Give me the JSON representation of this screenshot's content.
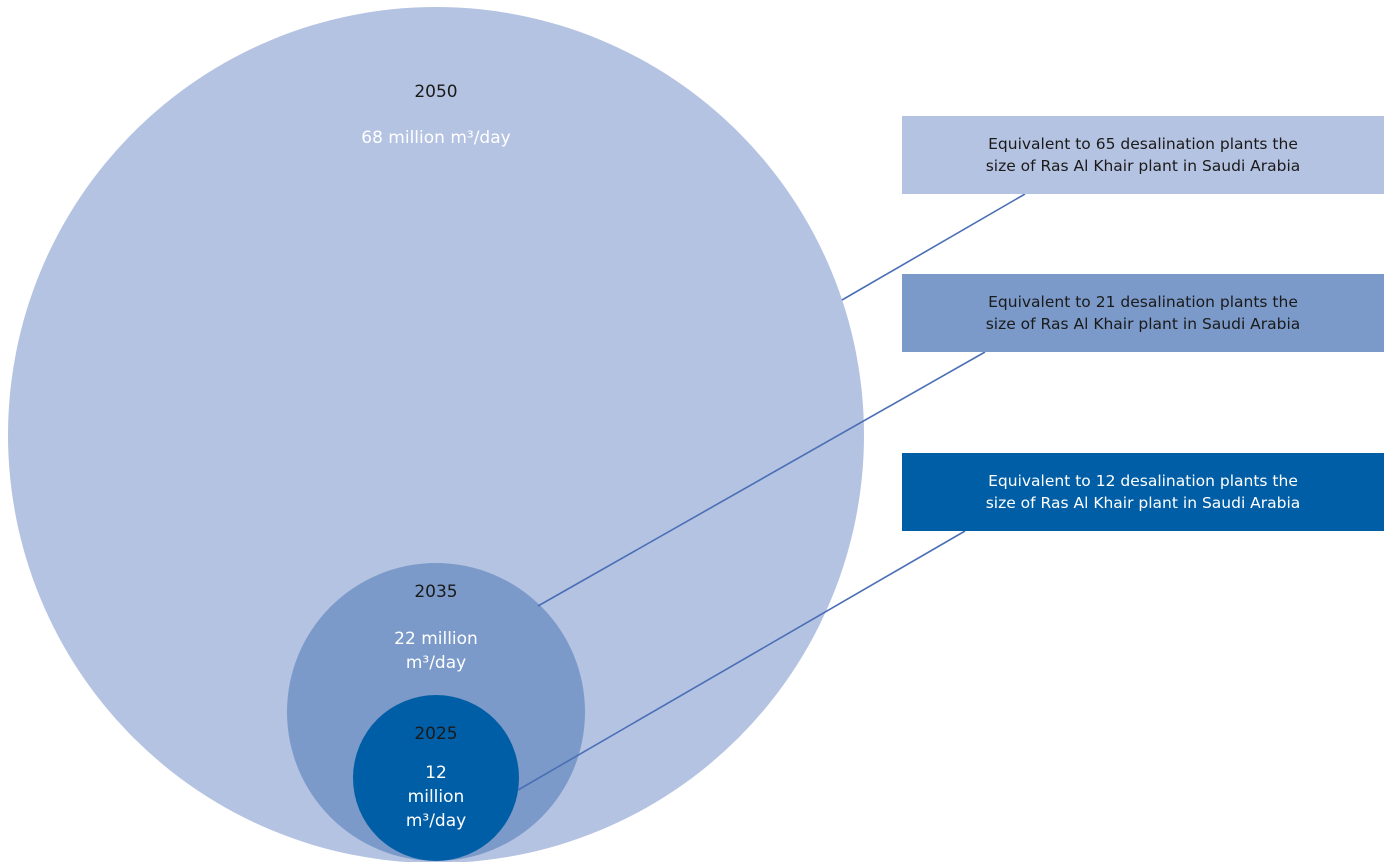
{
  "colors": {
    "circle_2050": "#b5c3e2",
    "circle_2035": "#7b9ac9",
    "circle_2025": "#005ea6",
    "box_2050": "#b5c3e2",
    "box_2035": "#7b9ac9",
    "box_2025": "#005ea6",
    "connector": "#4a6fb5",
    "dark_text": "#1a1a1a",
    "light_text": "#ffffff"
  },
  "circles": [
    {
      "year": "2050",
      "amount": "68 million m³/day",
      "equivalent_line1": "Equivalent to 65 desalination plants the",
      "equivalent_line2": "size of Ras Al Khair plant in Saudi Arabia"
    },
    {
      "year": "2035",
      "amount_line1": "22 million",
      "amount_line2": "m³/day",
      "equivalent_line1": "Equivalent to 21 desalination plants the",
      "equivalent_line2": "size of Ras Al Khair plant in Saudi Arabia"
    },
    {
      "year": "2025",
      "amount_line1": "12",
      "amount_line2": "million",
      "amount_line3": "m³/day",
      "equivalent_line1": "Equivalent to 12 desalination plants the",
      "equivalent_line2": "size of Ras Al Khair plant in Saudi Arabia"
    }
  ]
}
